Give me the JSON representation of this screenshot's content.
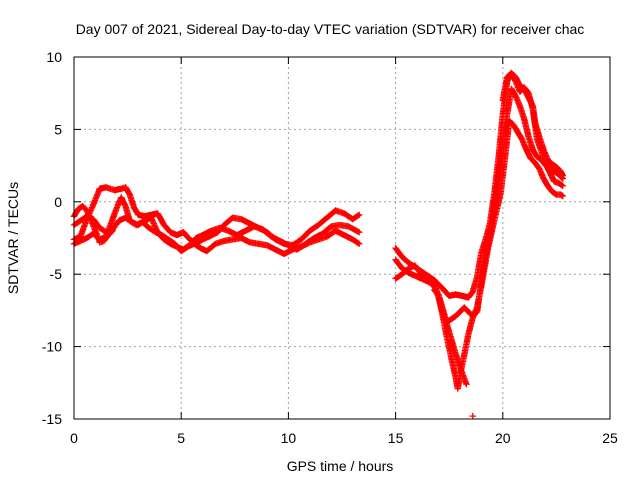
{
  "chart_data": {
    "type": "scatter",
    "title": "Day 007 of 2021, Sidereal Day-to-day VTEC variation (SDTVAR) for receiver chac",
    "xlabel": "GPS time / hours",
    "ylabel": "SDTVAR / TECUs",
    "xlim": [
      0,
      25
    ],
    "ylim": [
      -15,
      10
    ],
    "x_ticks": [
      0,
      5,
      10,
      15,
      20,
      25
    ],
    "x_tick_labels": [
      "0",
      "5",
      "10",
      "15",
      "20",
      "25"
    ],
    "y_ticks": [
      -15,
      -10,
      -5,
      0,
      5,
      10
    ],
    "y_tick_labels": [
      "-15",
      "-10",
      "-5",
      "0",
      "5",
      "10"
    ],
    "grid": true,
    "marker": "+",
    "series": [
      {
        "name": "SDTVAR",
        "color": "#ff0000",
        "traces": [
          [
            [
              0.0,
              -2.6
            ],
            [
              0.3,
              -2.4
            ],
            [
              0.6,
              -1.2
            ],
            [
              0.9,
              -0.2
            ],
            [
              1.2,
              0.9
            ],
            [
              1.5,
              1.0
            ],
            [
              1.9,
              0.8
            ],
            [
              2.2,
              0.9
            ],
            [
              2.4,
              1.0
            ],
            [
              2.6,
              0.5
            ],
            [
              2.8,
              -0.4
            ],
            [
              3.0,
              -0.9
            ],
            [
              3.3,
              -1.0
            ],
            [
              3.6,
              -0.9
            ],
            [
              3.9,
              -0.8
            ],
            [
              4.2,
              -1.6
            ],
            [
              4.5,
              -2.1
            ],
            [
              4.8,
              -2.3
            ],
            [
              5.1,
              -2.1
            ],
            [
              5.4,
              -2.6
            ],
            [
              5.7,
              -2.9
            ],
            [
              6.0,
              -2.6
            ],
            [
              6.3,
              -2.4
            ],
            [
              6.7,
              -2.1
            ],
            [
              7.0,
              -1.6
            ],
            [
              7.4,
              -1.1
            ],
            [
              7.8,
              -1.2
            ],
            [
              8.2,
              -1.5
            ],
            [
              8.6,
              -1.8
            ],
            [
              9.0,
              -2.1
            ],
            [
              9.4,
              -2.6
            ],
            [
              9.8,
              -2.9
            ],
            [
              10.2,
              -3.0
            ],
            [
              10.6,
              -2.6
            ],
            [
              11.0,
              -2.0
            ],
            [
              11.4,
              -1.6
            ],
            [
              11.8,
              -1.1
            ],
            [
              12.2,
              -0.6
            ],
            [
              12.6,
              -0.8
            ],
            [
              13.0,
              -1.2
            ],
            [
              13.3,
              -0.9
            ]
          ],
          [
            [
              0.0,
              -1.6
            ],
            [
              0.3,
              -1.3
            ],
            [
              0.6,
              -1.0
            ],
            [
              0.9,
              -1.2
            ],
            [
              1.2,
              -1.8
            ],
            [
              1.5,
              -2.1
            ],
            [
              1.8,
              -1.9
            ],
            [
              2.1,
              -1.3
            ],
            [
              2.4,
              -1.1
            ],
            [
              2.7,
              -1.4
            ],
            [
              3.0,
              -1.6
            ],
            [
              3.3,
              -1.3
            ],
            [
              3.6,
              -1.1
            ],
            [
              3.9,
              -2.1
            ],
            [
              4.2,
              -2.6
            ],
            [
              4.5,
              -2.9
            ],
            [
              4.8,
              -3.1
            ],
            [
              5.1,
              -3.3
            ],
            [
              5.4,
              -3.0
            ],
            [
              5.7,
              -2.5
            ],
            [
              6.0,
              -2.3
            ],
            [
              6.4,
              -2.0
            ],
            [
              6.8,
              -1.8
            ],
            [
              7.2,
              -2.0
            ],
            [
              7.6,
              -2.3
            ],
            [
              8.0,
              -2.0
            ],
            [
              8.4,
              -1.7
            ],
            [
              8.8,
              -1.9
            ],
            [
              9.2,
              -2.4
            ],
            [
              9.6,
              -2.7
            ],
            [
              10.0,
              -3.0
            ],
            [
              10.4,
              -3.3
            ],
            [
              10.8,
              -2.9
            ],
            [
              11.2,
              -2.5
            ],
            [
              11.6,
              -2.2
            ],
            [
              12.0,
              -1.7
            ],
            [
              12.4,
              -1.6
            ],
            [
              12.8,
              -1.7
            ],
            [
              13.3,
              -2.1
            ]
          ],
          [
            [
              0.0,
              -2.9
            ],
            [
              0.3,
              -2.7
            ],
            [
              0.6,
              -2.5
            ],
            [
              0.9,
              -2.2
            ],
            [
              1.2,
              -2.6
            ],
            [
              1.5,
              -2.4
            ],
            [
              1.8,
              -1.2
            ],
            [
              2.0,
              -0.4
            ],
            [
              2.2,
              0.3
            ],
            [
              2.4,
              -0.3
            ],
            [
              2.6,
              -1.3
            ],
            [
              2.9,
              -1.6
            ],
            [
              3.2,
              -1.4
            ],
            [
              3.5,
              -1.8
            ],
            [
              3.8,
              -2.1
            ],
            [
              4.1,
              -2.3
            ],
            [
              4.4,
              -2.6
            ],
            [
              4.7,
              -2.9
            ],
            [
              5.0,
              -3.4
            ],
            [
              5.3,
              -3.1
            ],
            [
              5.6,
              -2.9
            ],
            [
              5.9,
              -3.2
            ],
            [
              6.2,
              -3.4
            ],
            [
              6.6,
              -2.9
            ],
            [
              7.0,
              -2.7
            ],
            [
              7.4,
              -2.6
            ],
            [
              7.8,
              -2.5
            ],
            [
              8.2,
              -2.8
            ],
            [
              8.6,
              -2.9
            ],
            [
              9.0,
              -3.0
            ],
            [
              9.4,
              -3.3
            ],
            [
              9.8,
              -3.6
            ],
            [
              10.2,
              -3.3
            ],
            [
              10.6,
              -3.1
            ],
            [
              11.0,
              -2.8
            ],
            [
              11.4,
              -2.6
            ],
            [
              11.8,
              -2.4
            ],
            [
              12.2,
              -2.0
            ],
            [
              12.6,
              -2.3
            ],
            [
              13.0,
              -2.6
            ],
            [
              13.3,
              -2.9
            ]
          ],
          [
            [
              0.0,
              -1.0
            ],
            [
              0.2,
              -0.5
            ],
            [
              0.4,
              -0.3
            ],
            [
              0.6,
              -0.6
            ],
            [
              0.8,
              -1.3
            ],
            [
              1.0,
              -2.0
            ],
            [
              1.2,
              -2.8
            ],
            [
              1.4,
              -2.7
            ],
            [
              1.6,
              -2.3
            ],
            [
              1.8,
              -2.0
            ]
          ],
          [
            [
              15.0,
              -3.2
            ],
            [
              15.3,
              -3.8
            ],
            [
              15.6,
              -4.2
            ],
            [
              15.9,
              -4.5
            ],
            [
              16.2,
              -4.8
            ],
            [
              16.5,
              -5.1
            ],
            [
              16.8,
              -5.4
            ],
            [
              17.0,
              -5.7
            ],
            [
              17.2,
              -6.0
            ],
            [
              17.5,
              -6.5
            ],
            [
              17.8,
              -6.4
            ],
            [
              18.1,
              -6.5
            ],
            [
              18.4,
              -6.6
            ],
            [
              18.6,
              -6.2
            ],
            [
              18.8,
              -5.2
            ],
            [
              19.0,
              -3.5
            ],
            [
              19.2,
              -2.6
            ],
            [
              19.4,
              -1.5
            ],
            [
              19.6,
              0.5
            ],
            [
              19.8,
              3.0
            ],
            [
              20.0,
              6.0
            ],
            [
              20.2,
              8.3
            ],
            [
              20.4,
              8.9
            ],
            [
              20.6,
              8.6
            ],
            [
              20.8,
              8.0
            ],
            [
              21.0,
              7.8
            ],
            [
              21.2,
              7.2
            ],
            [
              21.4,
              6.6
            ],
            [
              21.5,
              5.5
            ],
            [
              21.7,
              4.5
            ],
            [
              21.9,
              3.6
            ],
            [
              22.1,
              2.9
            ],
            [
              22.3,
              2.6
            ],
            [
              22.5,
              2.4
            ],
            [
              22.7,
              2.1
            ],
            [
              22.8,
              1.8
            ]
          ],
          [
            [
              15.0,
              -4.0
            ],
            [
              15.3,
              -4.6
            ],
            [
              15.6,
              -4.9
            ],
            [
              15.9,
              -5.1
            ],
            [
              16.2,
              -5.3
            ],
            [
              16.5,
              -5.5
            ],
            [
              16.8,
              -5.8
            ],
            [
              17.0,
              -6.6
            ],
            [
              17.2,
              -7.6
            ],
            [
              17.4,
              -8.3
            ],
            [
              17.6,
              -8.1
            ],
            [
              17.8,
              -7.9
            ],
            [
              18.0,
              -7.6
            ],
            [
              18.2,
              -7.3
            ],
            [
              18.4,
              -7.6
            ],
            [
              18.6,
              -7.9
            ],
            [
              18.8,
              -7.6
            ],
            [
              19.0,
              -5.5
            ],
            [
              19.2,
              -3.7
            ],
            [
              19.4,
              -2.3
            ],
            [
              19.6,
              -0.3
            ],
            [
              19.8,
              2.0
            ],
            [
              20.0,
              4.5
            ],
            [
              20.2,
              6.0
            ],
            [
              20.4,
              7.8
            ],
            [
              20.6,
              7.3
            ],
            [
              20.8,
              6.6
            ],
            [
              21.0,
              5.7
            ],
            [
              21.2,
              4.5
            ],
            [
              21.4,
              3.6
            ],
            [
              21.6,
              3.1
            ],
            [
              21.8,
              2.9
            ],
            [
              22.0,
              2.5
            ],
            [
              22.2,
              2.3
            ],
            [
              22.4,
              2.1
            ],
            [
              22.6,
              1.9
            ],
            [
              22.8,
              1.6
            ]
          ],
          [
            [
              15.0,
              -5.3
            ],
            [
              15.3,
              -5.0
            ],
            [
              15.6,
              -4.6
            ],
            [
              15.9,
              -4.4
            ],
            [
              16.2,
              -5.0
            ],
            [
              16.5,
              -5.2
            ],
            [
              16.8,
              -5.6
            ],
            [
              17.0,
              -6.5
            ],
            [
              17.2,
              -7.9
            ],
            [
              17.4,
              -9.4
            ],
            [
              17.6,
              -10.8
            ],
            [
              17.8,
              -12.1
            ],
            [
              17.9,
              -12.9
            ],
            [
              18.0,
              -12.0
            ],
            [
              18.2,
              -10.6
            ],
            [
              18.4,
              -9.1
            ],
            [
              18.6,
              -8.0
            ],
            [
              18.8,
              -7.3
            ],
            [
              19.0,
              -5.8
            ],
            [
              19.3,
              -3.3
            ],
            [
              19.6,
              -1.3
            ],
            [
              19.9,
              0.6
            ],
            [
              20.1,
              3.0
            ],
            [
              20.3,
              5.6
            ],
            [
              20.5,
              5.3
            ],
            [
              20.7,
              4.8
            ],
            [
              20.9,
              4.3
            ],
            [
              21.1,
              3.6
            ],
            [
              21.3,
              3.0
            ],
            [
              21.5,
              2.7
            ],
            [
              21.7,
              2.3
            ],
            [
              21.9,
              1.6
            ],
            [
              22.1,
              1.1
            ],
            [
              22.3,
              0.7
            ],
            [
              22.5,
              0.5
            ],
            [
              22.7,
              0.5
            ],
            [
              22.8,
              0.4
            ]
          ],
          [
            [
              16.8,
              -6.1
            ],
            [
              17.0,
              -6.4
            ],
            [
              17.2,
              -7.4
            ],
            [
              17.4,
              -8.5
            ],
            [
              17.6,
              -9.5
            ],
            [
              17.8,
              -10.5
            ],
            [
              18.0,
              -11.4
            ],
            [
              18.2,
              -12.2
            ],
            [
              18.3,
              -12.6
            ]
          ],
          [
            [
              20.0,
              7.0
            ],
            [
              20.2,
              8.6
            ],
            [
              20.4,
              8.9
            ],
            [
              20.6,
              8.3
            ],
            [
              20.8,
              7.6
            ],
            [
              21.0,
              7.9
            ],
            [
              21.2,
              7.5
            ],
            [
              21.4,
              6.4
            ],
            [
              21.6,
              4.3
            ],
            [
              21.8,
              3.5
            ],
            [
              22.0,
              2.6
            ],
            [
              22.2,
              2.0
            ],
            [
              22.4,
              1.4
            ],
            [
              22.6,
              1.3
            ],
            [
              22.8,
              1.1
            ]
          ],
          [
            [
              18.6,
              -14.8
            ]
          ]
        ]
      }
    ]
  }
}
